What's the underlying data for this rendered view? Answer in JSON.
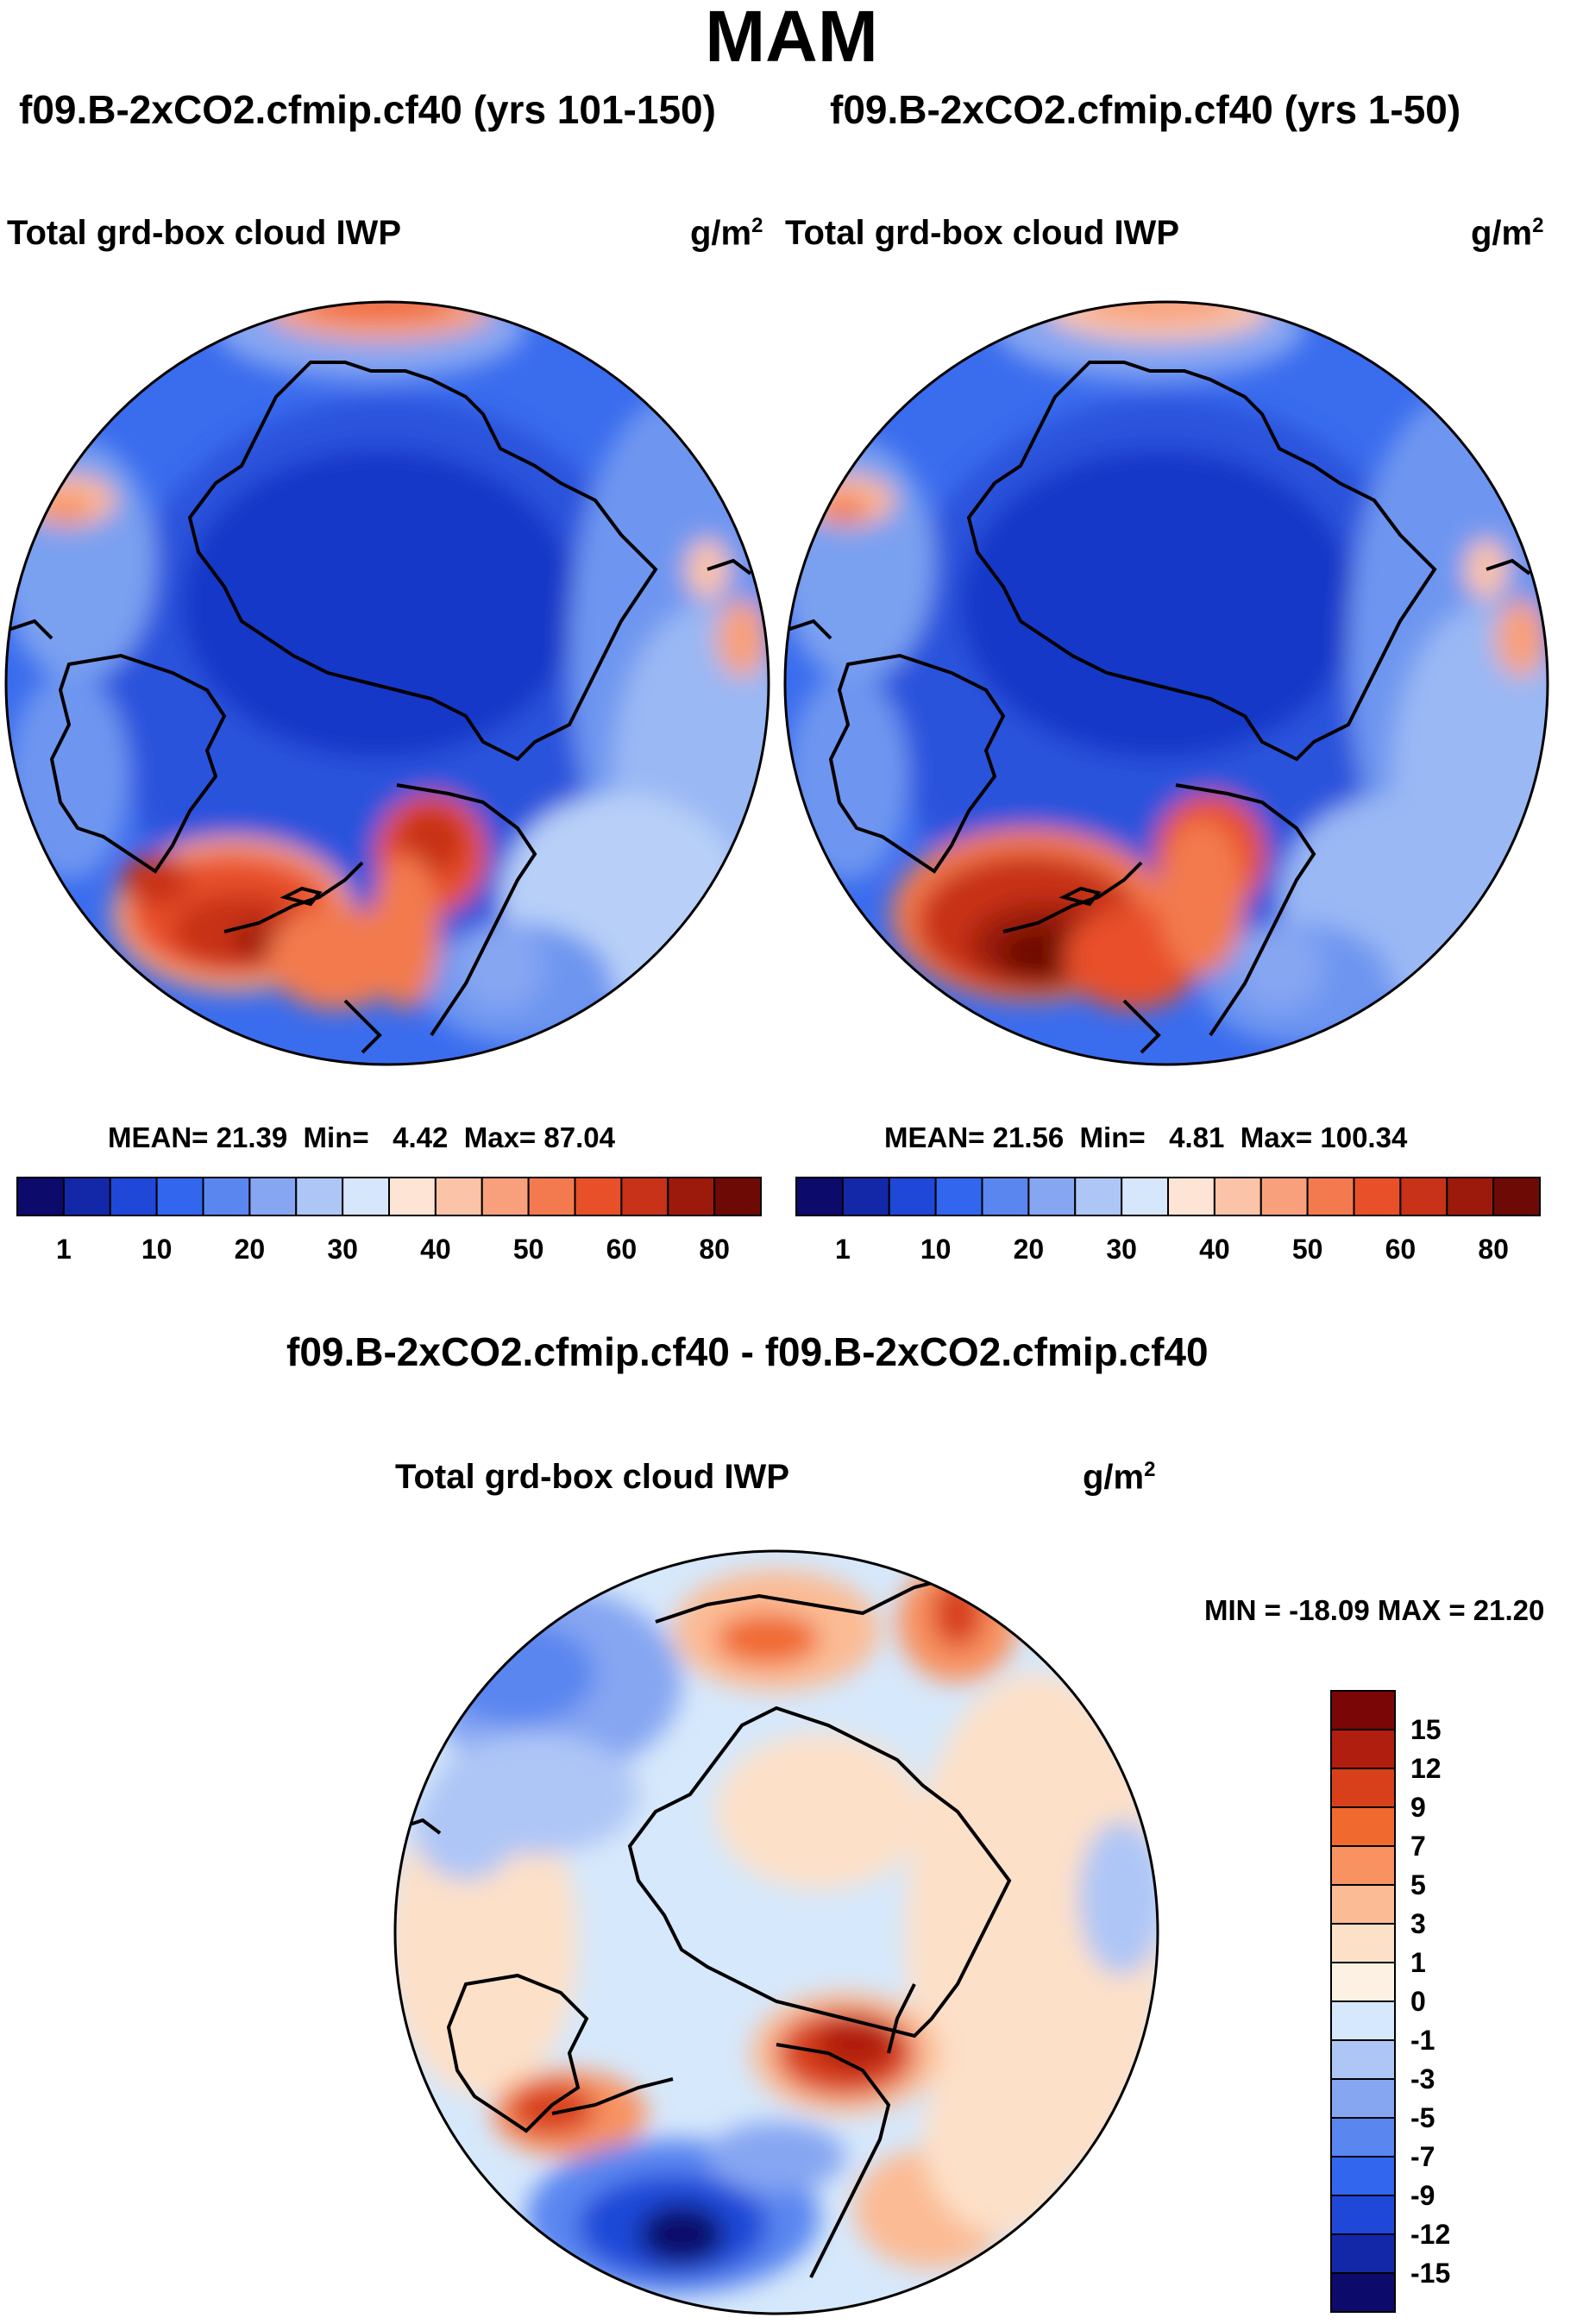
{
  "season": "MAM",
  "panels": [
    {
      "case_label": "f09.B-2xCO2.cfmip.cf40 (yrs 101-150)",
      "variable": "Total grd-box cloud IWP",
      "units": "g/m",
      "units_exp": "2",
      "stats": {
        "mean_label": "MEAN=",
        "mean": "21.39",
        "min_label": "Min=",
        "min": "4.42",
        "max_label": "Max=",
        "max": "87.04"
      }
    },
    {
      "case_label": "f09.B-2xCO2.cfmip.cf40 (yrs 1-50)",
      "variable": "Total grd-box cloud IWP",
      "units": "g/m",
      "units_exp": "2",
      "stats": {
        "mean_label": "MEAN=",
        "mean": "21.56",
        "min_label": "Min=",
        "min": "4.81",
        "max_label": "Max=",
        "max": "100.34"
      }
    }
  ],
  "difference": {
    "case_label": "f09.B-2xCO2.cfmip.cf40 - f09.B-2xCO2.cfmip.cf40",
    "variable": "Total grd-box cloud IWP",
    "units": "g/m",
    "units_exp": "2",
    "minmax": "MIN = -18.09 MAX =  21.20"
  },
  "chart_data": [
    {
      "type": "heatmap",
      "projection": "north polar stereographic",
      "title": "f09.B-2xCO2.cfmip.cf40 (yrs 101-150)",
      "variable": "Total grd-box cloud IWP",
      "units": "g/m2",
      "mean": 21.39,
      "min": 4.42,
      "max": 87.04,
      "colorbar": {
        "orientation": "horizontal",
        "tick_labels": [
          "1",
          "10",
          "20",
          "30",
          "40",
          "50",
          "60",
          "80"
        ],
        "colors": [
          "#0c0a6a",
          "#1328a8",
          "#1f48d8",
          "#3366ee",
          "#5a86f0",
          "#86a6f2",
          "#aec6f6",
          "#d6e6fb",
          "#fde4d4",
          "#fbc3a8",
          "#f8a07c",
          "#f37a4e",
          "#e8502a",
          "#c83218",
          "#9c1a0c",
          "#6e0a06"
        ]
      }
    },
    {
      "type": "heatmap",
      "projection": "north polar stereographic",
      "title": "f09.B-2xCO2.cfmip.cf40 (yrs 1-50)",
      "variable": "Total grd-box cloud IWP",
      "units": "g/m2",
      "mean": 21.56,
      "min": 4.81,
      "max": 100.34,
      "colorbar": {
        "orientation": "horizontal",
        "tick_labels": [
          "1",
          "10",
          "20",
          "30",
          "40",
          "50",
          "60",
          "80"
        ],
        "colors": [
          "#0c0a6a",
          "#1328a8",
          "#1f48d8",
          "#3366ee",
          "#5a86f0",
          "#86a6f2",
          "#aec6f6",
          "#d6e6fb",
          "#fde4d4",
          "#fbc3a8",
          "#f8a07c",
          "#f37a4e",
          "#e8502a",
          "#c83218",
          "#9c1a0c",
          "#6e0a06"
        ]
      }
    },
    {
      "type": "heatmap",
      "projection": "north polar stereographic",
      "title": "f09.B-2xCO2.cfmip.cf40 - f09.B-2xCO2.cfmip.cf40",
      "variable": "Total grd-box cloud IWP",
      "units": "g/m2",
      "min": -18.09,
      "max": 21.2,
      "colorbar": {
        "orientation": "vertical",
        "tick_labels": [
          "15",
          "12",
          "9",
          "7",
          "5",
          "3",
          "1",
          "0",
          "-1",
          "-3",
          "-5",
          "-7",
          "-9",
          "-12",
          "-15"
        ],
        "colors": [
          "#7a0606",
          "#b01e10",
          "#d8401c",
          "#f06a30",
          "#f89260",
          "#fbbb94",
          "#fde0c8",
          "#fdf1e4",
          "#d6e8fb",
          "#aec6f6",
          "#86a6f2",
          "#5a86f0",
          "#3366ee",
          "#1f48d8",
          "#1328a8",
          "#0c0a6a"
        ]
      }
    }
  ],
  "icons": [
    "coastline-map"
  ]
}
